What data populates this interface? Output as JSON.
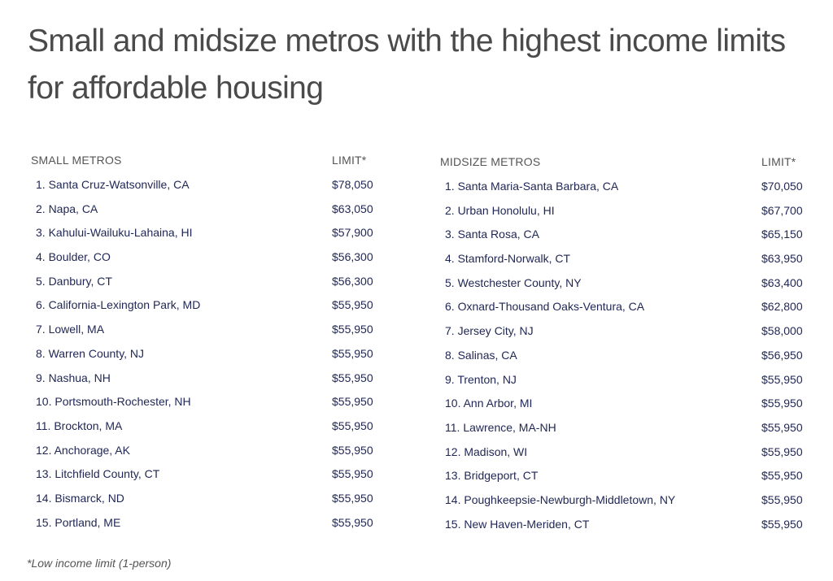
{
  "title": "Small and midsize metros with the highest income limits for affordable housing",
  "colors": {
    "title": "#4a4a4a",
    "header": "#555555",
    "row_text": "#1f2654",
    "background": "#ffffff"
  },
  "small_metros": {
    "header_name": "SMALL METROS",
    "header_limit": "LIMIT*",
    "rows": [
      {
        "name": "1. Santa Cruz-Watsonville, CA",
        "limit": "$78,050"
      },
      {
        "name": "2. Napa, CA",
        "limit": "$63,050"
      },
      {
        "name": "3. Kahului-Wailuku-Lahaina, HI",
        "limit": "$57,900"
      },
      {
        "name": "4. Boulder, CO",
        "limit": "$56,300"
      },
      {
        "name": "5. Danbury, CT",
        "limit": "$56,300"
      },
      {
        "name": "6. California-Lexington Park, MD",
        "limit": "$55,950"
      },
      {
        "name": "7. Lowell, MA",
        "limit": "$55,950"
      },
      {
        "name": "8. Warren County, NJ",
        "limit": "$55,950"
      },
      {
        "name": "9. Nashua, NH",
        "limit": "$55,950"
      },
      {
        "name": "10. Portsmouth-Rochester, NH",
        "limit": "$55,950"
      },
      {
        "name": "11. Brockton, MA",
        "limit": "$55,950"
      },
      {
        "name": "12. Anchorage, AK",
        "limit": "$55,950"
      },
      {
        "name": "13. Litchfield County, CT",
        "limit": "$55,950"
      },
      {
        "name": "14. Bismarck, ND",
        "limit": "$55,950"
      },
      {
        "name": "15. Portland, ME",
        "limit": "$55,950"
      }
    ]
  },
  "midsize_metros": {
    "header_name": "MIDSIZE METROS",
    "header_limit": "LIMIT*",
    "rows": [
      {
        "name": "1. Santa Maria-Santa Barbara, CA",
        "limit": "$70,050"
      },
      {
        "name": "2. Urban Honolulu, HI",
        "limit": "$67,700"
      },
      {
        "name": "3. Santa Rosa, CA",
        "limit": "$65,150"
      },
      {
        "name": "4. Stamford-Norwalk, CT",
        "limit": "$63,950"
      },
      {
        "name": "5. Westchester County, NY",
        "limit": "$63,400"
      },
      {
        "name": "6. Oxnard-Thousand Oaks-Ventura, CA",
        "limit": "$62,800"
      },
      {
        "name": "7. Jersey City, NJ",
        "limit": "$58,000"
      },
      {
        "name": "8. Salinas, CA",
        "limit": "$56,950"
      },
      {
        "name": "9. Trenton, NJ",
        "limit": "$55,950"
      },
      {
        "name": "10. Ann Arbor, MI",
        "limit": "$55,950"
      },
      {
        "name": "11. Lawrence, MA-NH",
        "limit": "$55,950"
      },
      {
        "name": "12. Madison, WI",
        "limit": "$55,950"
      },
      {
        "name": "13. Bridgeport, CT",
        "limit": "$55,950"
      },
      {
        "name": "14. Poughkeepsie-Newburgh-Middletown, NY",
        "limit": "$55,950"
      },
      {
        "name": "15. New Haven-Meriden, CT",
        "limit": "$55,950"
      }
    ]
  },
  "footnote": "*Low income limit (1-person)"
}
